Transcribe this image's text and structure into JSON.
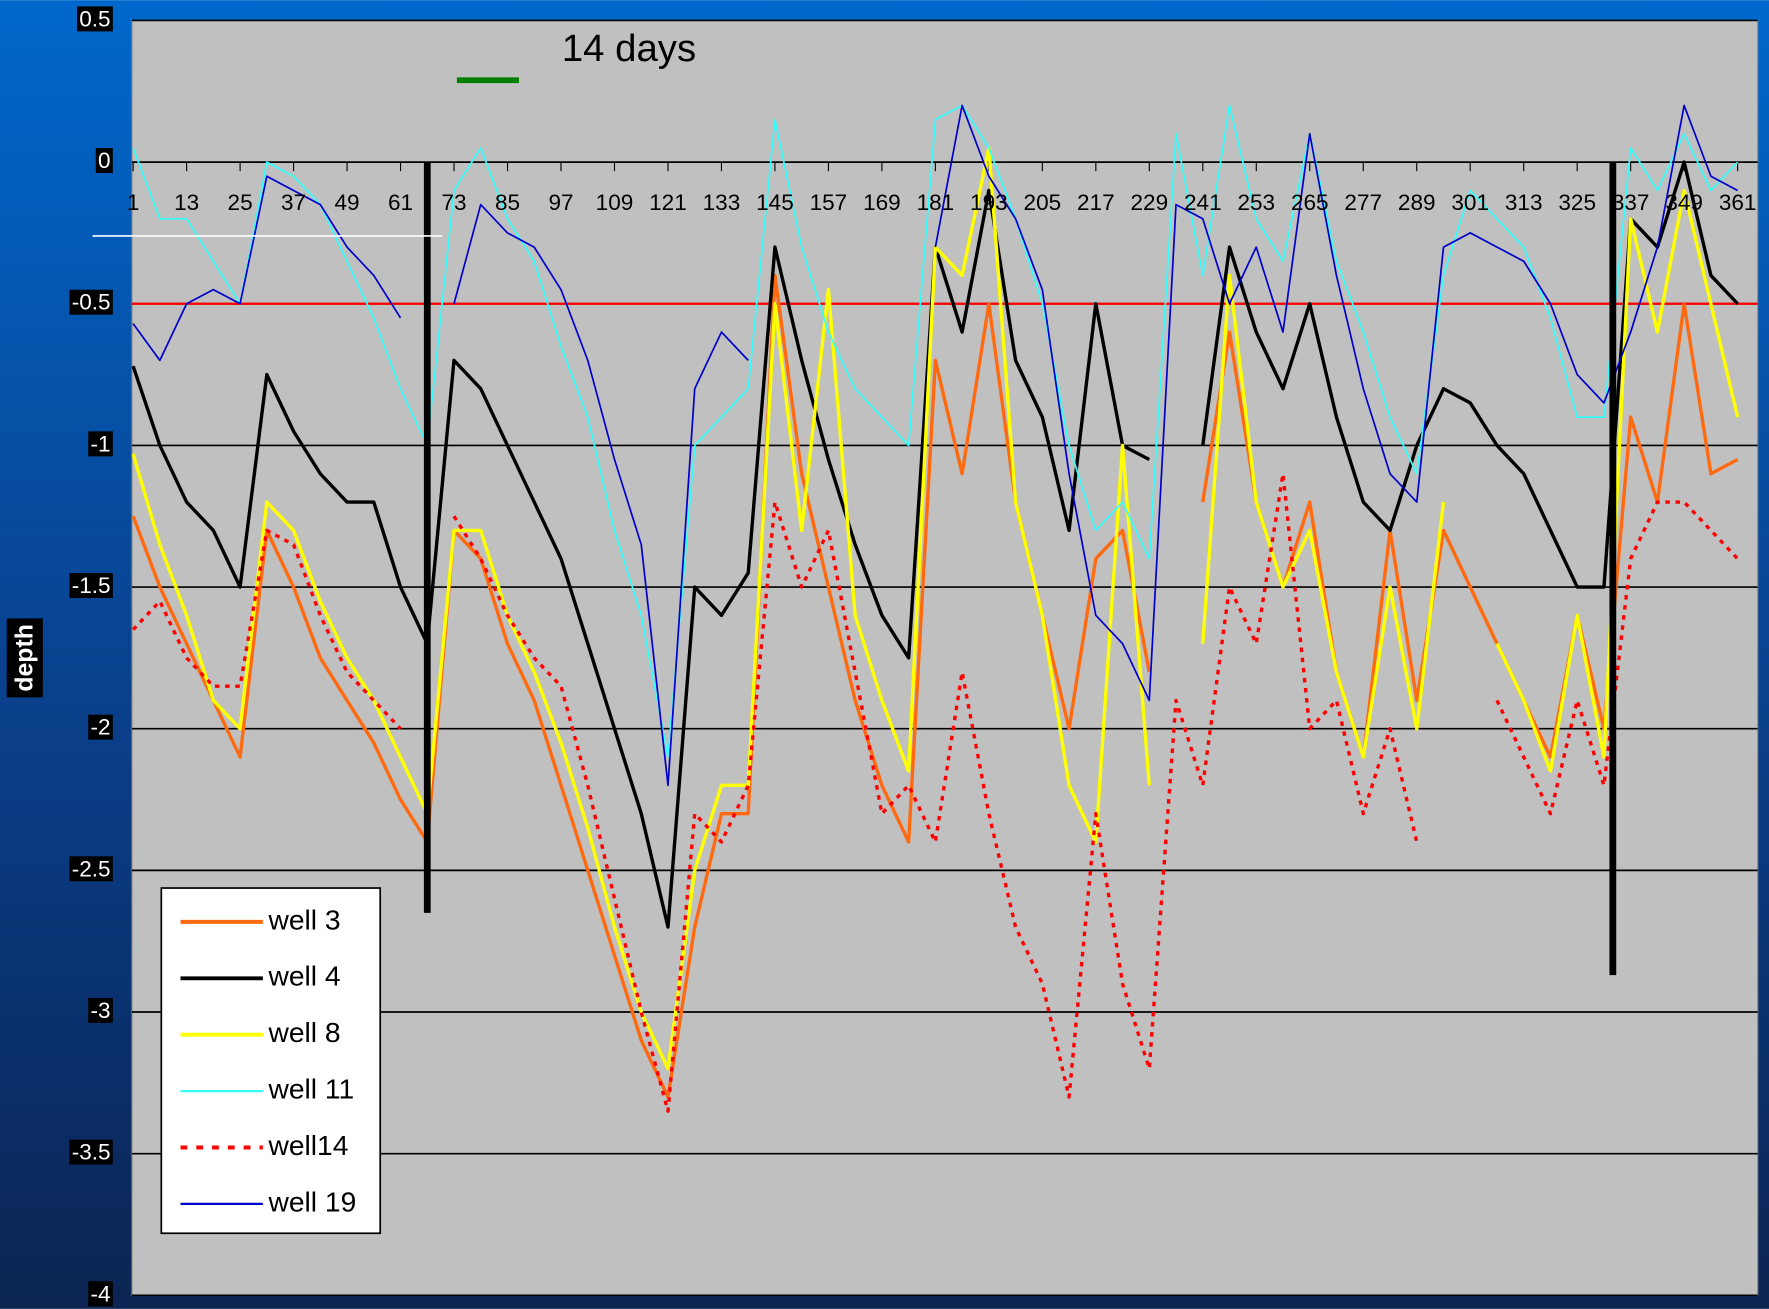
{
  "chart_data": {
    "type": "line",
    "y_axis_label": "depth",
    "annotation": "14 days",
    "xlim": [
      1,
      365
    ],
    "xticks": [
      1,
      13,
      25,
      37,
      49,
      61,
      73,
      85,
      97,
      109,
      121,
      133,
      145,
      157,
      169,
      181,
      193,
      205,
      217,
      229,
      241,
      253,
      265,
      277,
      289,
      301,
      313,
      325,
      337,
      349,
      361
    ],
    "ylim": [
      -4,
      0.5
    ],
    "yticks": [
      0.5,
      0,
      -0.5,
      -1,
      -1.5,
      -2,
      -2.5,
      -3,
      -3.5,
      -4
    ],
    "grid": true,
    "reference_line": {
      "value": -0.5,
      "color": "#ff0000"
    },
    "events": [
      {
        "x": 67,
        "top": 0,
        "bottom": -2.65
      },
      {
        "x": 333,
        "top": 0,
        "bottom": -2.87
      }
    ],
    "x": [
      1,
      7,
      13,
      19,
      25,
      31,
      37,
      43,
      49,
      55,
      61,
      67,
      73,
      79,
      85,
      91,
      97,
      103,
      109,
      115,
      121,
      127,
      133,
      139,
      145,
      151,
      157,
      163,
      169,
      175,
      181,
      187,
      193,
      199,
      205,
      211,
      217,
      223,
      229,
      235,
      241,
      247,
      253,
      259,
      265,
      271,
      277,
      283,
      289,
      295,
      301,
      307,
      313,
      319,
      325,
      331,
      337,
      343,
      349,
      355,
      361
    ],
    "series": [
      {
        "name": "well 3",
        "color": "#ff6a10",
        "width": 3,
        "dashed": false,
        "values": [
          -1.25,
          -1.5,
          -1.7,
          -1.9,
          -2.1,
          -1.3,
          -1.5,
          -1.75,
          -1.9,
          -2.05,
          -2.25,
          -2.4,
          -1.3,
          -1.4,
          -1.7,
          -1.9,
          -2.2,
          -2.5,
          -2.8,
          -3.1,
          -3.3,
          -2.7,
          -2.3,
          -2.3,
          -0.4,
          -1.1,
          -1.5,
          -1.9,
          -2.2,
          -2.4,
          -0.7,
          -1.1,
          -0.5,
          -1.2,
          -1.6,
          -2.0,
          -1.4,
          -1.3,
          -1.8,
          null,
          -1.2,
          -0.6,
          -1.2,
          -1.5,
          -1.2,
          -1.8,
          -2.1,
          -1.3,
          -1.9,
          -1.3,
          -1.5,
          -1.7,
          -1.9,
          -2.1,
          -1.6,
          -2.0,
          -0.9,
          -1.2,
          -0.5,
          -1.1,
          -1.05
        ]
      },
      {
        "name": "well 4",
        "color": "#000000",
        "width": 3,
        "dashed": false,
        "values": [
          -0.72,
          -1.0,
          -1.2,
          -1.3,
          -1.5,
          -0.75,
          -0.95,
          -1.1,
          -1.2,
          -1.2,
          -1.5,
          -1.7,
          -0.7,
          -0.8,
          -1.0,
          -1.2,
          -1.4,
          -1.7,
          -2.0,
          -2.3,
          -2.7,
          -1.5,
          -1.6,
          -1.45,
          -0.3,
          -0.7,
          -1.05,
          -1.35,
          -1.6,
          -1.75,
          -0.3,
          -0.6,
          -0.1,
          -0.7,
          -0.9,
          -1.3,
          -0.5,
          -1.0,
          -1.05,
          null,
          -1.0,
          -0.3,
          -0.6,
          -0.8,
          -0.5,
          -0.9,
          -1.2,
          -1.3,
          -1.0,
          -0.8,
          -0.85,
          -1.0,
          -1.1,
          -1.3,
          -1.5,
          -1.5,
          -0.2,
          -0.3,
          0.0,
          -0.4,
          -0.5
        ]
      },
      {
        "name": "well 8",
        "color": "#ffff00",
        "width": 3,
        "dashed": false,
        "values": [
          -1.03,
          -1.35,
          -1.6,
          -1.9,
          -2.0,
          -1.2,
          -1.3,
          -1.55,
          -1.75,
          -1.9,
          -2.1,
          -2.3,
          -1.3,
          -1.3,
          -1.6,
          -1.8,
          -2.05,
          -2.35,
          -2.7,
          -3.0,
          -3.2,
          -2.5,
          -2.2,
          -2.2,
          -0.5,
          -1.3,
          -0.45,
          -1.6,
          -1.9,
          -2.15,
          -0.3,
          -0.4,
          0.05,
          -1.2,
          -1.6,
          -2.2,
          -2.4,
          -1.0,
          -2.2,
          null,
          -1.7,
          -0.4,
          -1.2,
          -1.5,
          -1.3,
          -1.8,
          -2.1,
          -1.5,
          -2.0,
          -1.2,
          null,
          -1.7,
          -1.9,
          -2.15,
          -1.6,
          -2.1,
          -0.2,
          -0.6,
          -0.1,
          -0.5,
          -0.9
        ]
      },
      {
        "name": "well 11",
        "color": "#33ffff",
        "width": 1.5,
        "dashed": false,
        "values": [
          0.05,
          -0.2,
          -0.2,
          -0.35,
          -0.5,
          0.0,
          -0.05,
          -0.15,
          -0.35,
          -0.55,
          -0.8,
          -1.0,
          -0.1,
          0.05,
          -0.2,
          -0.35,
          -0.65,
          -0.9,
          -1.3,
          -1.6,
          -2.1,
          -1.0,
          -0.9,
          -0.8,
          0.15,
          -0.3,
          -0.6,
          -0.8,
          -0.9,
          -1.0,
          0.15,
          0.2,
          0.05,
          -0.2,
          -0.5,
          -1.0,
          -1.3,
          -1.2,
          -1.4,
          0.1,
          -0.4,
          0.2,
          -0.2,
          -0.35,
          0.1,
          -0.35,
          -0.6,
          -0.9,
          -1.1,
          -0.4,
          -0.1,
          -0.2,
          -0.3,
          -0.55,
          -0.9,
          -0.9,
          0.05,
          -0.1,
          0.1,
          -0.1,
          0.0
        ]
      },
      {
        "name": "well14",
        "color": "#ff0000",
        "width": 3,
        "dashed": true,
        "values": [
          -1.65,
          -1.55,
          -1.75,
          -1.85,
          -1.85,
          -1.3,
          -1.35,
          -1.6,
          -1.8,
          -1.9,
          -2.0,
          null,
          -1.25,
          -1.4,
          -1.6,
          -1.75,
          -1.85,
          -2.2,
          -2.6,
          -3.0,
          -3.35,
          -2.3,
          -2.4,
          -2.2,
          -1.2,
          -1.5,
          -1.3,
          -1.8,
          -2.3,
          -2.2,
          -2.4,
          -1.8,
          -2.3,
          -2.7,
          -2.9,
          -3.3,
          -2.3,
          -2.9,
          -3.2,
          -1.9,
          -2.2,
          -1.5,
          -1.7,
          -1.1,
          -2.0,
          -1.9,
          -2.3,
          -2.0,
          -2.4,
          null,
          null,
          -1.9,
          -2.1,
          -2.3,
          -1.9,
          -2.2,
          -1.4,
          -1.2,
          -1.2,
          -1.3,
          -1.4
        ]
      },
      {
        "name": "well 19",
        "color": "#0000cc",
        "width": 1.5,
        "dashed": false,
        "values": [
          -0.57,
          -0.7,
          -0.5,
          -0.45,
          -0.5,
          -0.05,
          -0.1,
          -0.15,
          -0.3,
          -0.4,
          -0.55,
          null,
          -0.5,
          -0.15,
          -0.25,
          -0.3,
          -0.45,
          -0.7,
          -1.05,
          -1.35,
          -2.2,
          -0.8,
          -0.6,
          -0.7,
          null,
          null,
          null,
          null,
          null,
          null,
          -0.3,
          0.2,
          -0.05,
          -0.2,
          -0.45,
          -1.1,
          -1.6,
          -1.7,
          -1.9,
          -0.15,
          -0.2,
          -0.5,
          -0.3,
          -0.6,
          0.1,
          -0.4,
          -0.8,
          -1.1,
          -1.2,
          -0.3,
          -0.25,
          -0.3,
          -0.35,
          -0.5,
          -0.75,
          -0.85,
          -0.6,
          -0.3,
          0.2,
          -0.05,
          -0.1
        ]
      }
    ]
  }
}
